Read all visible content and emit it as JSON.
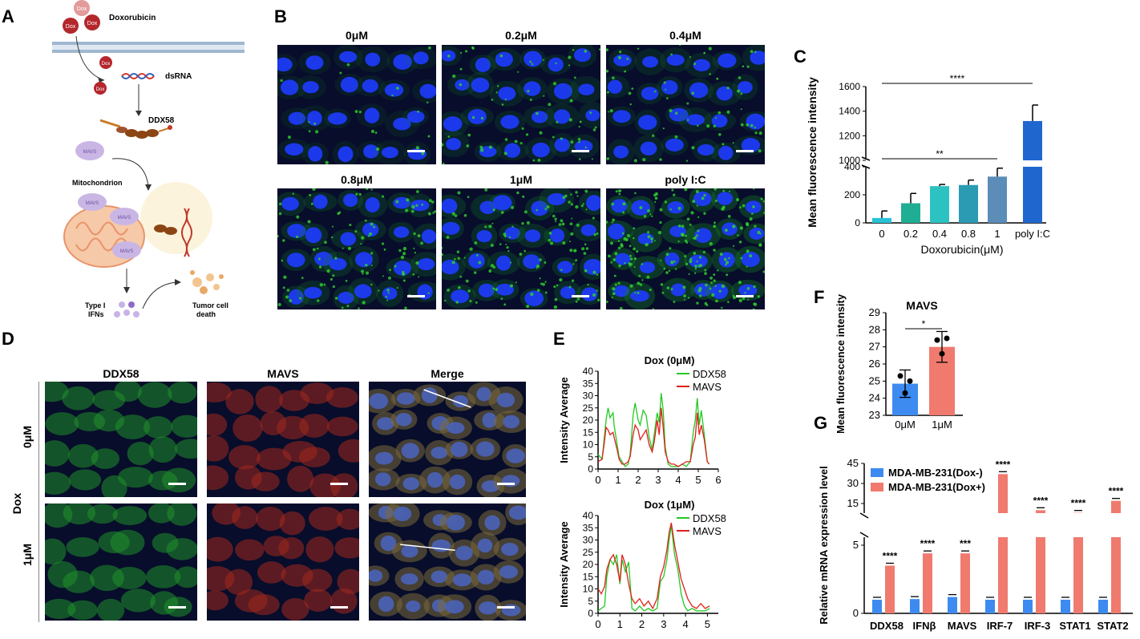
{
  "panel_labels": {
    "a": "A",
    "b": "B",
    "c": "C",
    "d": "D",
    "e": "E",
    "f": "F",
    "g": "G"
  },
  "panelA": {
    "dox": "Dox",
    "doxorubicin": "Doxorubicin",
    "dsrna": "dsRNA",
    "ddx58": "DDX58",
    "mavs": "MAVS",
    "mitochondrion": "Mitochondrion",
    "typeI": "Type I",
    "ifns": "IFNs",
    "tumor": "Tumor cell",
    "death": "death"
  },
  "panelB": {
    "labels": [
      "0μM",
      "0.2μM",
      "0.4μM",
      "0.8μM",
      "1μM",
      "poly I:C"
    ]
  },
  "panelD": {
    "cols": [
      "DDX58",
      "MAVS",
      "Merge"
    ],
    "rows": [
      "0μM",
      "1μM"
    ],
    "group": "Dox"
  },
  "colors": {
    "micro_bg": "#070d2a",
    "blue_nuclei": "#1e3cff",
    "green": "#22c922",
    "red": "#e0201a",
    "dox_red": "#c0392b",
    "bar_blue": "#3d8bf0",
    "bar_salmon": "#f07a6e"
  },
  "chart_data": [
    {
      "id": "C",
      "type": "bar",
      "xlabel": "Doxorubicin(μM)",
      "ylabel": "Mean fluorescence intensity",
      "categories": [
        "0",
        "0.2",
        "0.4",
        "0.8",
        "1",
        "poly I:C"
      ],
      "values": [
        35,
        140,
        262,
        270,
        330,
        1320
      ],
      "errors": [
        50,
        70,
        12,
        35,
        60,
        130
      ],
      "bar_colors": [
        "#27c2d6",
        "#1fae94",
        "#2dc2c2",
        "#2a9bb3",
        "#5b8db8",
        "#1f67cf"
      ],
      "yticks_low": [
        "0",
        "200",
        "400"
      ],
      "yticks_high": [
        "1000",
        "1200",
        "1400",
        "1600"
      ],
      "axis_break": [
        400,
        1000
      ],
      "annotations": [
        {
          "text": "****",
          "from": "0",
          "to": "poly I:C"
        },
        {
          "text": "**",
          "from": "0",
          "to": "1"
        }
      ]
    },
    {
      "id": "E1",
      "type": "line",
      "title": "Dox (0μM)",
      "ylabel": "Intensity Average",
      "xticks": [
        "0",
        "1",
        "2",
        "3",
        "4",
        "5",
        "6"
      ],
      "yticks": [
        "0",
        "5",
        "10",
        "15",
        "20",
        "25",
        "30",
        "35",
        "40"
      ],
      "xlim": [
        0,
        6
      ],
      "ylim": [
        0,
        40
      ],
      "series": [
        {
          "name": "DDX58",
          "x": [
            0,
            0.2,
            0.3,
            0.4,
            0.5,
            0.6,
            0.75,
            0.8,
            0.95,
            1.05,
            1.2,
            1.35,
            1.5,
            1.6,
            1.75,
            1.85,
            2.0,
            2.1,
            2.25,
            2.4,
            2.55,
            2.7,
            2.8,
            2.95,
            3.05,
            3.15,
            3.25,
            3.35,
            3.5,
            3.65,
            3.8,
            4.0,
            4.2,
            4.4,
            4.6,
            4.75,
            4.85,
            4.95,
            5.05,
            5.15,
            5.3,
            5.45,
            5.55
          ],
          "y": [
            6,
            4,
            12,
            20,
            25,
            21,
            23,
            18,
            10,
            5,
            3,
            1,
            2,
            6,
            22,
            27,
            20,
            18,
            24,
            22,
            13,
            8,
            14,
            23,
            19,
            31,
            24,
            9,
            2,
            1,
            1,
            1,
            2,
            1,
            3,
            15,
            20,
            29,
            18,
            24,
            14,
            3,
            2
          ]
        },
        {
          "name": "MAVS",
          "x": [
            0,
            0.2,
            0.3,
            0.4,
            0.5,
            0.6,
            0.75,
            0.8,
            0.95,
            1.05,
            1.2,
            1.35,
            1.5,
            1.6,
            1.75,
            1.85,
            2.0,
            2.1,
            2.25,
            2.4,
            2.55,
            2.7,
            2.8,
            2.95,
            3.05,
            3.15,
            3.25,
            3.35,
            3.5,
            3.65,
            3.8,
            4.0,
            4.2,
            4.4,
            4.6,
            4.75,
            4.85,
            4.95,
            5.05,
            5.15,
            5.3,
            5.45,
            5.55
          ],
          "y": [
            3,
            4,
            10,
            17,
            16,
            14,
            15,
            13,
            8,
            4,
            2,
            2,
            3,
            5,
            14,
            18,
            16,
            12,
            14,
            16,
            10,
            7,
            11,
            20,
            14,
            25,
            17,
            7,
            3,
            2,
            2,
            1,
            2,
            3,
            3,
            10,
            13,
            23,
            14,
            18,
            12,
            3,
            2
          ]
        }
      ]
    },
    {
      "id": "E2",
      "type": "line",
      "title": "Dox (1μM)",
      "ylabel": "Intensity Average",
      "xticks": [
        "0",
        "1",
        "2",
        "3",
        "4",
        "5"
      ],
      "yticks": [
        "0",
        "5",
        "10",
        "15",
        "20",
        "25",
        "30",
        "35",
        "40"
      ],
      "xlim": [
        0,
        5.5
      ],
      "ylim": [
        0,
        40
      ],
      "series": [
        {
          "name": "DDX58",
          "x": [
            0,
            0.15,
            0.3,
            0.4,
            0.55,
            0.7,
            0.85,
            1.0,
            1.1,
            1.25,
            1.4,
            1.55,
            1.7,
            1.9,
            2.1,
            2.3,
            2.5,
            2.7,
            2.85,
            3.0,
            3.15,
            3.25,
            3.35,
            3.5,
            3.65,
            3.8,
            3.95,
            4.1,
            4.3,
            4.5,
            4.7,
            4.9,
            5.1
          ],
          "y": [
            1,
            2,
            3,
            15,
            22,
            20,
            24,
            12,
            22,
            17,
            21,
            2,
            1,
            3,
            1,
            2,
            1,
            2,
            13,
            15,
            22,
            30,
            36,
            24,
            18,
            8,
            3,
            1,
            2,
            1,
            1,
            1,
            2
          ]
        },
        {
          "name": "MAVS",
          "x": [
            0,
            0.15,
            0.3,
            0.4,
            0.55,
            0.7,
            0.85,
            1.0,
            1.1,
            1.25,
            1.4,
            1.55,
            1.7,
            1.9,
            2.1,
            2.3,
            2.5,
            2.7,
            2.85,
            3.0,
            3.15,
            3.25,
            3.35,
            3.5,
            3.65,
            3.8,
            3.95,
            4.1,
            4.3,
            4.5,
            4.7,
            4.9,
            5.1
          ],
          "y": [
            10,
            8,
            11,
            18,
            22,
            24,
            20,
            13,
            24,
            20,
            12,
            6,
            4,
            6,
            3,
            5,
            2,
            6,
            15,
            19,
            26,
            33,
            37,
            28,
            21,
            14,
            10,
            6,
            3,
            2,
            4,
            2,
            3
          ]
        }
      ]
    },
    {
      "id": "F",
      "type": "bar",
      "title": "MAVS",
      "ylabel": "Mean fluorescence intensity",
      "categories": [
        "0μM",
        "1μM"
      ],
      "values": [
        24.85,
        27.0
      ],
      "errors": [
        0.8,
        0.9
      ],
      "points": [
        [
          25.3,
          24.3,
          25.0
        ],
        [
          27.4,
          26.6,
          27.5
        ]
      ],
      "bar_colors": [
        "#3d8bf0",
        "#f07a6e"
      ],
      "yticks": [
        "23",
        "24",
        "25",
        "26",
        "27",
        "28",
        "29"
      ],
      "ylim": [
        23,
        29
      ],
      "annotations": [
        {
          "text": "*"
        }
      ]
    },
    {
      "id": "G",
      "type": "bar",
      "ylabel": "Relative mRNA expression level",
      "categories": [
        "DDX58",
        "IFNβ",
        "MAVS",
        "IRF-7",
        "IRF-3",
        "STAT1",
        "STAT2"
      ],
      "series": [
        {
          "name": "MDA-MB-231(Dox-)",
          "values": [
            1.0,
            1.05,
            1.2,
            1.0,
            1.0,
            1.0,
            1.0
          ],
          "color": "#3d8bf0"
        },
        {
          "name": "MDA-MB-231(Dox+)",
          "values": [
            3.5,
            4.4,
            4.4,
            37,
            10,
            8,
            17
          ],
          "color": "#f07a6e"
        }
      ],
      "sig": [
        "****",
        "****",
        "***",
        "****",
        "****",
        "****",
        "****"
      ],
      "yticks_low": [
        "0",
        "5"
      ],
      "yticks_high": [
        "15",
        "30",
        "45"
      ],
      "axis_break": [
        5,
        15
      ]
    }
  ]
}
